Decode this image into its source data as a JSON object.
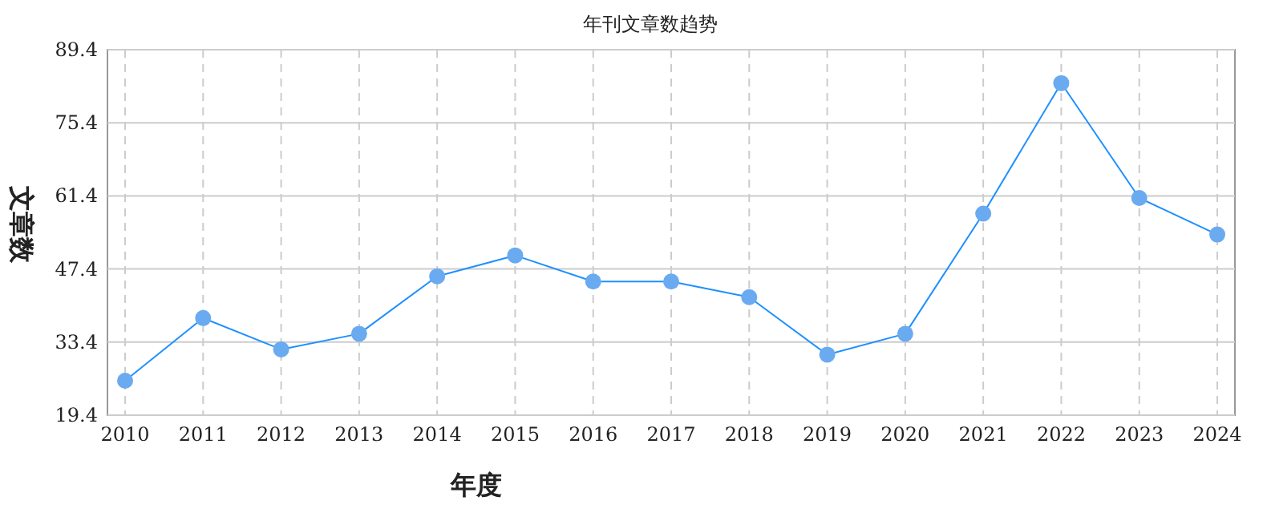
{
  "chart_data": {
    "type": "line",
    "title": "年刊文章数趋势",
    "xlabel": "年度",
    "ylabel": "文章数",
    "categories": [
      "2010",
      "2011",
      "2012",
      "2013",
      "2014",
      "2015",
      "2016",
      "2017",
      "2018",
      "2019",
      "2020",
      "2021",
      "2022",
      "2023",
      "2024"
    ],
    "series": [
      {
        "color": "#1e90ff",
        "values": [
          26,
          38,
          32,
          35,
          46,
          50,
          45,
          45,
          42,
          31,
          35,
          58,
          83,
          61,
          54
        ]
      }
    ],
    "ylim": [
      19.4,
      89.4
    ],
    "yticks": [
      19.4,
      33.4,
      47.4,
      61.4,
      75.4,
      89.4
    ],
    "grid": true,
    "marker": "circle",
    "line_style": "solid"
  }
}
